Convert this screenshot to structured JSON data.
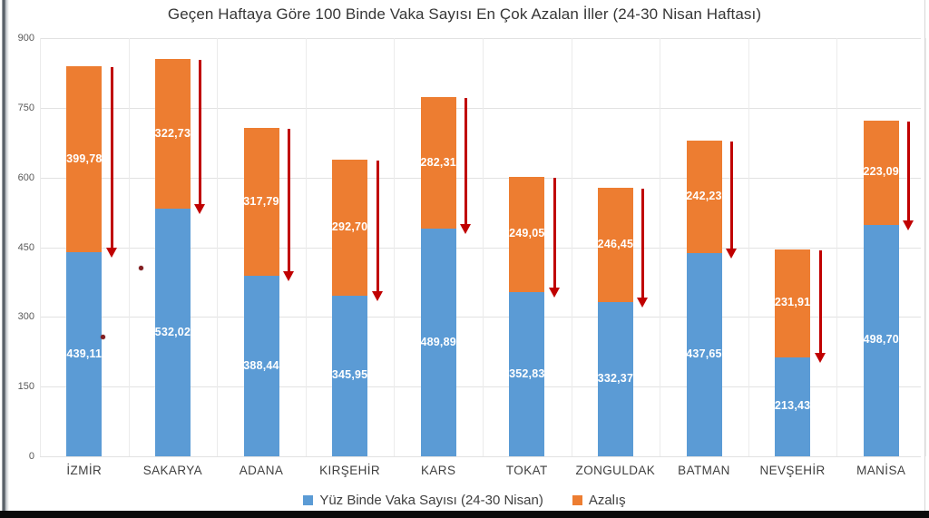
{
  "chart_data": {
    "type": "bar",
    "stacked": true,
    "title": "Geçen Haftaya Göre 100 Binde Vaka Sayısı En Çok Azalan İller (24-30 Nisan Haftası)",
    "categories": [
      "İZMİR",
      "SAKARYA",
      "ADANA",
      "KIRŞEHİR",
      "KARS",
      "TOKAT",
      "ZONGULDAK",
      "BATMAN",
      "NEVŞEHİR",
      "MANİSA"
    ],
    "series": [
      {
        "name": "Yüz Binde Vaka Sayısı (24-30 Nisan)",
        "color": "#5B9BD5",
        "values": [
          439.11,
          532.02,
          388.44,
          345.95,
          489.89,
          352.83,
          332.37,
          437.65,
          213.43,
          498.7
        ],
        "labels": [
          "439,11",
          "532,02",
          "388,44",
          "345,95",
          "489,89",
          "352,83",
          "332,37",
          "437,65",
          "213,43",
          "498,70"
        ]
      },
      {
        "name": "Azalış",
        "color": "#ED7D31",
        "values": [
          399.78,
          322.73,
          317.79,
          292.7,
          282.31,
          249.05,
          246.45,
          242.23,
          231.91,
          223.09
        ],
        "labels": [
          "399,78",
          "322,73",
          "317,79",
          "292,70",
          "282,31",
          "249,05",
          "246,45",
          "242,23",
          "231,91",
          "223,09"
        ]
      }
    ],
    "y_axis": {
      "min": 0,
      "max": 900,
      "step": 150,
      "tick_labels": [
        "0",
        "150",
        "300",
        "450",
        "600",
        "750",
        "900"
      ]
    },
    "grid": true,
    "legend_position": "bottom",
    "annotations": {
      "decrease_arrows_per_bar": true,
      "arrow_color": "#C00000"
    }
  }
}
